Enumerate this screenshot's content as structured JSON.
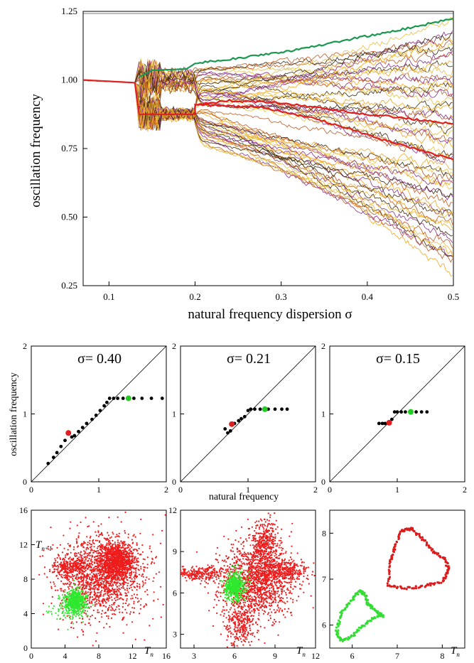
{
  "chart_data": [
    {
      "id": "main",
      "type": "line",
      "xlabel": "natural frequency dispersion σ",
      "ylabel": "oscillation frequency",
      "xlim": [
        0.07,
        0.5
      ],
      "ylim": [
        0.25,
        1.25
      ],
      "xticks": [
        "0.1",
        "0.2",
        "0.3",
        "0.4",
        "0.5"
      ],
      "xtick_values": [
        0.1,
        0.2,
        0.3,
        0.4,
        0.5
      ],
      "yticks": [
        "0.25",
        "0.50",
        "0.75",
        "1.00",
        "1.25"
      ],
      "ytick_values": [
        0.25,
        0.5,
        0.75,
        1.0,
        1.25
      ],
      "grid": false,
      "colors": {
        "bundle": [
          "#f0a820",
          "#c05a20",
          "#8a2f8a",
          "#3a2a10",
          "#e8c040"
        ],
        "top": "#1a9850",
        "highlight": "#e02020"
      },
      "series": [
        {
          "role": "highlight",
          "color": "#e02020",
          "x": [
            0.07,
            0.13,
            0.135,
            0.2,
            0.2,
            0.28,
            0.35,
            0.42,
            0.5
          ],
          "y": [
            1.0,
            0.99,
            0.875,
            0.875,
            0.91,
            0.9,
            0.85,
            0.78,
            0.71
          ]
        },
        {
          "role": "highlight",
          "color": "#e02020",
          "x": [
            0.2,
            0.24,
            0.3,
            0.4,
            0.5
          ],
          "y": [
            0.91,
            0.925,
            0.915,
            0.875,
            0.84
          ]
        },
        {
          "role": "top",
          "color": "#1a9850",
          "x": [
            0.135,
            0.15,
            0.19,
            0.2,
            0.25,
            0.3,
            0.35,
            0.4,
            0.45,
            0.5
          ],
          "y": [
            1.01,
            1.035,
            1.04,
            1.06,
            1.08,
            1.1,
            1.13,
            1.16,
            1.19,
            1.225
          ]
        }
      ]
    },
    {
      "id": "scatter-040",
      "type": "scatter",
      "title": "σ= 0.40",
      "xlim": [
        0,
        2
      ],
      "ylim": [
        0,
        2
      ],
      "x": [
        0.25,
        0.33,
        0.38,
        0.44,
        0.5,
        0.6,
        0.64,
        0.7,
        0.76,
        0.82,
        0.9,
        0.96,
        1.02,
        1.08,
        1.12,
        1.16,
        1.22,
        1.28,
        1.36,
        1.52,
        1.64,
        1.78,
        1.94
      ],
      "y": [
        0.27,
        0.36,
        0.43,
        0.52,
        0.61,
        0.66,
        0.68,
        0.74,
        0.8,
        0.86,
        0.92,
        0.98,
        1.05,
        1.12,
        1.17,
        1.23,
        1.23,
        1.23,
        1.23,
        1.23,
        1.23,
        1.23,
        1.23
      ],
      "red_point": [
        0.55,
        0.72
      ],
      "green_point": [
        1.44,
        1.23
      ]
    },
    {
      "id": "scatter-021",
      "type": "scatter",
      "title": "σ= 0.21",
      "xlim": [
        0,
        2
      ],
      "ylim": [
        0,
        2
      ],
      "x": [
        0.66,
        0.7,
        0.74,
        0.8,
        0.86,
        0.9,
        0.95,
        1.0,
        1.04,
        1.1,
        1.18,
        1.3,
        1.4,
        1.5,
        1.58
      ],
      "y": [
        0.78,
        0.72,
        0.75,
        0.86,
        0.9,
        0.93,
        0.96,
        1.05,
        1.07,
        1.07,
        1.07,
        1.07,
        1.07,
        1.07,
        1.07
      ],
      "red_point": [
        0.76,
        0.85
      ],
      "green_point": [
        1.25,
        1.07
      ]
    },
    {
      "id": "scatter-015",
      "type": "scatter",
      "title": "σ= 0.15",
      "xlim": [
        0,
        2
      ],
      "ylim": [
        0,
        2
      ],
      "x": [
        0.73,
        0.78,
        0.82,
        0.88,
        0.92,
        0.96,
        1.0,
        1.06,
        1.12,
        1.2,
        1.28,
        1.36,
        1.44
      ],
      "y": [
        0.86,
        0.86,
        0.86,
        0.88,
        0.92,
        1.03,
        1.03,
        1.03,
        1.03,
        1.03,
        1.03,
        1.03,
        1.03
      ],
      "red_point": [
        0.88,
        0.87
      ],
      "green_point": [
        1.2,
        1.03
      ]
    },
    {
      "id": "return-040",
      "type": "scatter",
      "xlim": [
        0,
        16
      ],
      "ylim": [
        0,
        16
      ],
      "xticks": [
        "0",
        "4",
        "8",
        "12",
        "16"
      ],
      "yticks": [
        "0",
        "4",
        "8",
        "12",
        "16"
      ],
      "ylabel": "T",
      "ylabel_sub": "n+1",
      "xlabel": "T",
      "xlabel_sub": "n",
      "red_clusters": [
        {
          "cx": 10.2,
          "cy": 10.2,
          "sx": 1.0,
          "sy": 1.0,
          "n": 900
        },
        {
          "cx": 8.4,
          "cy": 8.3,
          "sx": 2.6,
          "sy": 2.5,
          "n": 1500
        },
        {
          "cx": 4.6,
          "cy": 9.4,
          "sx": 1.0,
          "sy": 0.5,
          "n": 250
        }
      ],
      "green_clusters": [
        {
          "cx": 5.2,
          "cy": 5.4,
          "sx": 0.6,
          "sy": 0.7,
          "n": 600
        },
        {
          "cx": 3.8,
          "cy": 4.0,
          "sx": 1.0,
          "sy": 0.9,
          "n": 40
        }
      ]
    },
    {
      "id": "return-021",
      "type": "scatter",
      "xlim": [
        2,
        12
      ],
      "ylim": [
        2,
        12
      ],
      "xticks": [
        "3",
        "6",
        "9",
        "12"
      ],
      "yticks": [
        "3",
        "6",
        "9",
        "12"
      ],
      "xlabel": "T",
      "xlabel_sub": "n",
      "red_clusters": [
        {
          "cx": 7.6,
          "cy": 6.8,
          "sx": 1.4,
          "sy": 1.4,
          "n": 1400
        },
        {
          "cx": 8.2,
          "cy": 9.6,
          "sx": 0.5,
          "sy": 0.8,
          "n": 350
        },
        {
          "cx": 9.6,
          "cy": 7.6,
          "sx": 0.9,
          "sy": 0.35,
          "n": 300
        },
        {
          "cx": 3.4,
          "cy": 7.4,
          "sx": 0.9,
          "sy": 0.25,
          "n": 250
        },
        {
          "cx": 6.4,
          "cy": 3.6,
          "sx": 0.5,
          "sy": 0.8,
          "n": 250
        }
      ],
      "green_clusters": [
        {
          "cx": 6.0,
          "cy": 6.5,
          "sx": 0.4,
          "sy": 0.5,
          "n": 500
        }
      ]
    },
    {
      "id": "return-015",
      "type": "scatter",
      "xlim": [
        5.5,
        8.5
      ],
      "ylim": [
        5.5,
        8.5
      ],
      "xticks": [
        "6",
        "7",
        "8"
      ],
      "yticks": [
        "6",
        "7",
        "8"
      ],
      "xlabel": "T",
      "xlabel_sub": "n",
      "red_loop": [
        [
          6.8,
          6.85
        ],
        [
          6.85,
          7.35
        ],
        [
          6.95,
          7.7
        ],
        [
          7.1,
          8.05
        ],
        [
          7.3,
          8.1
        ],
        [
          7.55,
          7.9
        ],
        [
          7.8,
          7.6
        ],
        [
          8.05,
          7.45
        ],
        [
          8.15,
          7.2
        ],
        [
          8.0,
          6.95
        ],
        [
          7.6,
          6.85
        ],
        [
          7.2,
          6.8
        ],
        [
          6.8,
          6.85
        ]
      ],
      "green_loop": [
        [
          5.65,
          5.85
        ],
        [
          5.75,
          6.25
        ],
        [
          6.0,
          6.55
        ],
        [
          6.15,
          6.75
        ],
        [
          6.3,
          6.65
        ],
        [
          6.35,
          6.45
        ],
        [
          6.55,
          6.3
        ],
        [
          6.7,
          6.2
        ],
        [
          6.45,
          6.15
        ],
        [
          6.2,
          5.95
        ],
        [
          6.0,
          5.75
        ],
        [
          5.75,
          5.65
        ],
        [
          5.65,
          5.85
        ]
      ]
    }
  ],
  "shared_labels": {
    "scatter_ylabel": "oscillation frequency",
    "scatter_xlabel": "natural frequency",
    "scatter_xticks": [
      "0",
      "1",
      "2"
    ],
    "scatter_yticks": [
      "0",
      "1",
      "2"
    ]
  }
}
